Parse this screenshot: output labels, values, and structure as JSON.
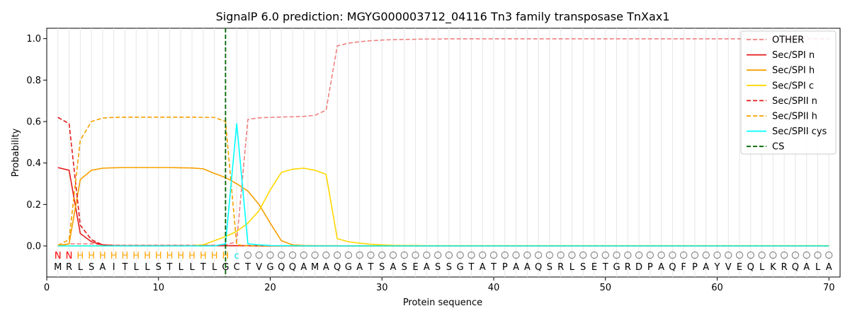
{
  "chart_data": {
    "type": "line",
    "title": "SignalP 6.0 prediction: MGYG000003712_04116 Tn3 family transposase TnXax1",
    "xlabel": "Protein sequence",
    "ylabel": "Probability",
    "xlim": [
      0,
      71
    ],
    "ylim": [
      -0.15,
      1.05
    ],
    "xticks": [
      0,
      10,
      20,
      30,
      40,
      50,
      60,
      70
    ],
    "yticks": [
      0.0,
      0.2,
      0.4,
      0.6,
      0.8,
      1.0
    ],
    "legend_position": "top-right",
    "sequence": [
      "M",
      "R",
      "L",
      "S",
      "A",
      "I",
      "T",
      "L",
      "L",
      "S",
      "T",
      "L",
      "L",
      "T",
      "L",
      "G",
      "C",
      "T",
      "V",
      "G",
      "Q",
      "Q",
      "A",
      "M",
      "A",
      "Q",
      "G",
      "A",
      "T",
      "S",
      "A",
      "S",
      "E",
      "A",
      "S",
      "S",
      "G",
      "T",
      "A",
      "T",
      "P",
      "A",
      "A",
      "Q",
      "S",
      "R",
      "L",
      "S",
      "E",
      "T",
      "G",
      "R",
      "D",
      "P",
      "A",
      "Q",
      "F",
      "P",
      "A",
      "Y",
      "V",
      "E",
      "Q",
      "L",
      "K",
      "R",
      "Q",
      "A",
      "L",
      "A"
    ],
    "region_labels": [
      "N",
      "N",
      "H",
      "H",
      "H",
      "H",
      "H",
      "H",
      "H",
      "H",
      "H",
      "H",
      "H",
      "H",
      "H",
      "H",
      "C",
      "O",
      "O",
      "O",
      "O",
      "O",
      "O",
      "O",
      "O",
      "O",
      "O",
      "O",
      "O",
      "O",
      "O",
      "O",
      "O",
      "O",
      "O",
      "O",
      "O",
      "O",
      "O",
      "O",
      "O",
      "O",
      "O",
      "O",
      "O",
      "O",
      "O",
      "O",
      "O",
      "O",
      "O",
      "O",
      "O",
      "O",
      "O",
      "O",
      "O",
      "O",
      "O",
      "O",
      "O",
      "O",
      "O",
      "O",
      "O",
      "O",
      "O",
      "O",
      "O",
      "O"
    ],
    "region_colors": {
      "N": "#ff0000",
      "H": "#ffa500",
      "C": "#00e5e5",
      "O": "#808080"
    },
    "cs_position": 16,
    "series": [
      {
        "name": "OTHER",
        "color": "#f08080",
        "dash": true,
        "values": [
          0.0,
          0.01,
          0.01,
          0.01,
          0.005,
          0.003,
          0.003,
          0.003,
          0.003,
          0.003,
          0.003,
          0.003,
          0.003,
          0.003,
          0.003,
          0.005,
          0.02,
          0.61,
          0.618,
          0.62,
          0.622,
          0.623,
          0.625,
          0.63,
          0.655,
          0.965,
          0.978,
          0.985,
          0.99,
          0.993,
          0.995,
          0.996,
          0.997,
          0.998,
          0.998,
          0.999,
          0.999,
          0.999,
          0.999,
          0.999,
          0.999,
          0.999,
          0.999,
          0.999,
          0.999,
          0.999,
          0.999,
          0.999,
          0.999,
          0.999,
          0.999,
          0.999,
          0.999,
          0.999,
          0.999,
          0.999,
          0.999,
          0.999,
          0.999,
          0.999,
          0.999,
          0.999,
          0.999,
          0.999,
          0.999,
          0.999,
          0.999,
          0.999,
          0.999,
          0.999
        ]
      },
      {
        "name": "Sec/SPI n",
        "color": "#e41a1a",
        "dash": false,
        "values": [
          0.378,
          0.365,
          0.06,
          0.02,
          0.005,
          0.002,
          0.001,
          0.001,
          0.001,
          0.001,
          0.001,
          0.001,
          0.001,
          0.001,
          0.001,
          0.001,
          0.001,
          0.001,
          0,
          0,
          0,
          0,
          0,
          0,
          0,
          0,
          0,
          0,
          0,
          0,
          0,
          0,
          0,
          0,
          0,
          0,
          0,
          0,
          0,
          0,
          0,
          0,
          0,
          0,
          0,
          0,
          0,
          0,
          0,
          0,
          0,
          0,
          0,
          0,
          0,
          0,
          0,
          0,
          0,
          0,
          0,
          0,
          0,
          0,
          0,
          0,
          0,
          0,
          0,
          0
        ]
      },
      {
        "name": "Sec/SPI h",
        "color": "#f5a000",
        "dash": false,
        "values": [
          0.002,
          0.01,
          0.32,
          0.365,
          0.375,
          0.377,
          0.378,
          0.378,
          0.378,
          0.378,
          0.378,
          0.377,
          0.376,
          0.372,
          0.35,
          0.33,
          0.3,
          0.265,
          0.2,
          0.11,
          0.025,
          0.005,
          0.002,
          0.001,
          0.001,
          0.001,
          0,
          0,
          0,
          0,
          0,
          0,
          0,
          0,
          0,
          0,
          0,
          0,
          0,
          0,
          0,
          0,
          0,
          0,
          0,
          0,
          0,
          0,
          0,
          0,
          0,
          0,
          0,
          0,
          0,
          0,
          0,
          0,
          0,
          0,
          0,
          0,
          0,
          0,
          0,
          0,
          0,
          0,
          0,
          0
        ]
      },
      {
        "name": "Sec/SPI c",
        "color": "#ffd700",
        "dash": false,
        "values": [
          0.0,
          0.0,
          0.0,
          0.0,
          0.0,
          0.0,
          0.0,
          0.0,
          0.0,
          0.0,
          0.0,
          0.0,
          0.001,
          0.005,
          0.025,
          0.045,
          0.07,
          0.11,
          0.17,
          0.27,
          0.355,
          0.37,
          0.375,
          0.365,
          0.345,
          0.035,
          0.02,
          0.013,
          0.008,
          0.005,
          0.003,
          0.002,
          0.002,
          0.001,
          0.001,
          0.001,
          0.001,
          0.001,
          0.001,
          0.001,
          0.001,
          0.001,
          0.001,
          0.001,
          0.001,
          0.001,
          0.001,
          0.001,
          0.001,
          0.001,
          0.001,
          0.001,
          0.001,
          0.001,
          0.001,
          0.001,
          0.001,
          0.001,
          0.001,
          0.001,
          0.001,
          0.001,
          0.001,
          0.001,
          0.001,
          0.001,
          0.001,
          0.001,
          0.001,
          0.001
        ]
      },
      {
        "name": "Sec/SPII n",
        "color": "#e41a1a",
        "dash": true,
        "values": [
          0.62,
          0.59,
          0.1,
          0.03,
          0.005,
          0.002,
          0.001,
          0.001,
          0.001,
          0.001,
          0.001,
          0.001,
          0.001,
          0.001,
          0.001,
          0.001,
          0.001,
          0.001,
          0,
          0,
          0,
          0,
          0,
          0,
          0,
          0,
          0,
          0,
          0,
          0,
          0,
          0,
          0,
          0,
          0,
          0,
          0,
          0,
          0,
          0,
          0,
          0,
          0,
          0,
          0,
          0,
          0,
          0,
          0,
          0,
          0,
          0,
          0,
          0,
          0,
          0,
          0,
          0,
          0,
          0,
          0,
          0,
          0,
          0,
          0,
          0,
          0,
          0,
          0,
          0
        ]
      },
      {
        "name": "Sec/SPII h",
        "color": "#f5a000",
        "dash": true,
        "values": [
          0.003,
          0.03,
          0.51,
          0.6,
          0.617,
          0.62,
          0.621,
          0.621,
          0.621,
          0.621,
          0.621,
          0.621,
          0.621,
          0.62,
          0.62,
          0.6,
          0.005,
          0.001,
          0,
          0,
          0,
          0,
          0,
          0,
          0,
          0,
          0,
          0,
          0,
          0,
          0,
          0,
          0,
          0,
          0,
          0,
          0,
          0,
          0,
          0,
          0,
          0,
          0,
          0,
          0,
          0,
          0,
          0,
          0,
          0,
          0,
          0,
          0,
          0,
          0,
          0,
          0,
          0,
          0,
          0,
          0,
          0,
          0,
          0,
          0,
          0,
          0,
          0,
          0,
          0
        ]
      },
      {
        "name": "Sec/SPII cys",
        "color": "#00ffff",
        "dash": false,
        "values": [
          0,
          0,
          0,
          0,
          0,
          0,
          0,
          0,
          0,
          0,
          0,
          0,
          0,
          0,
          0,
          0.01,
          0.59,
          0.01,
          0.005,
          0.002,
          0.001,
          0.001,
          0,
          0,
          0,
          0,
          0,
          0,
          0,
          0,
          0,
          0,
          0,
          0,
          0,
          0,
          0,
          0,
          0,
          0,
          0,
          0,
          0,
          0,
          0,
          0,
          0,
          0,
          0,
          0,
          0,
          0,
          0,
          0,
          0,
          0,
          0,
          0,
          0,
          0,
          0,
          0,
          0,
          0,
          0,
          0,
          0,
          0,
          0,
          0
        ]
      },
      {
        "name": "CS",
        "color": "#006400",
        "dash": true,
        "values": []
      }
    ]
  }
}
